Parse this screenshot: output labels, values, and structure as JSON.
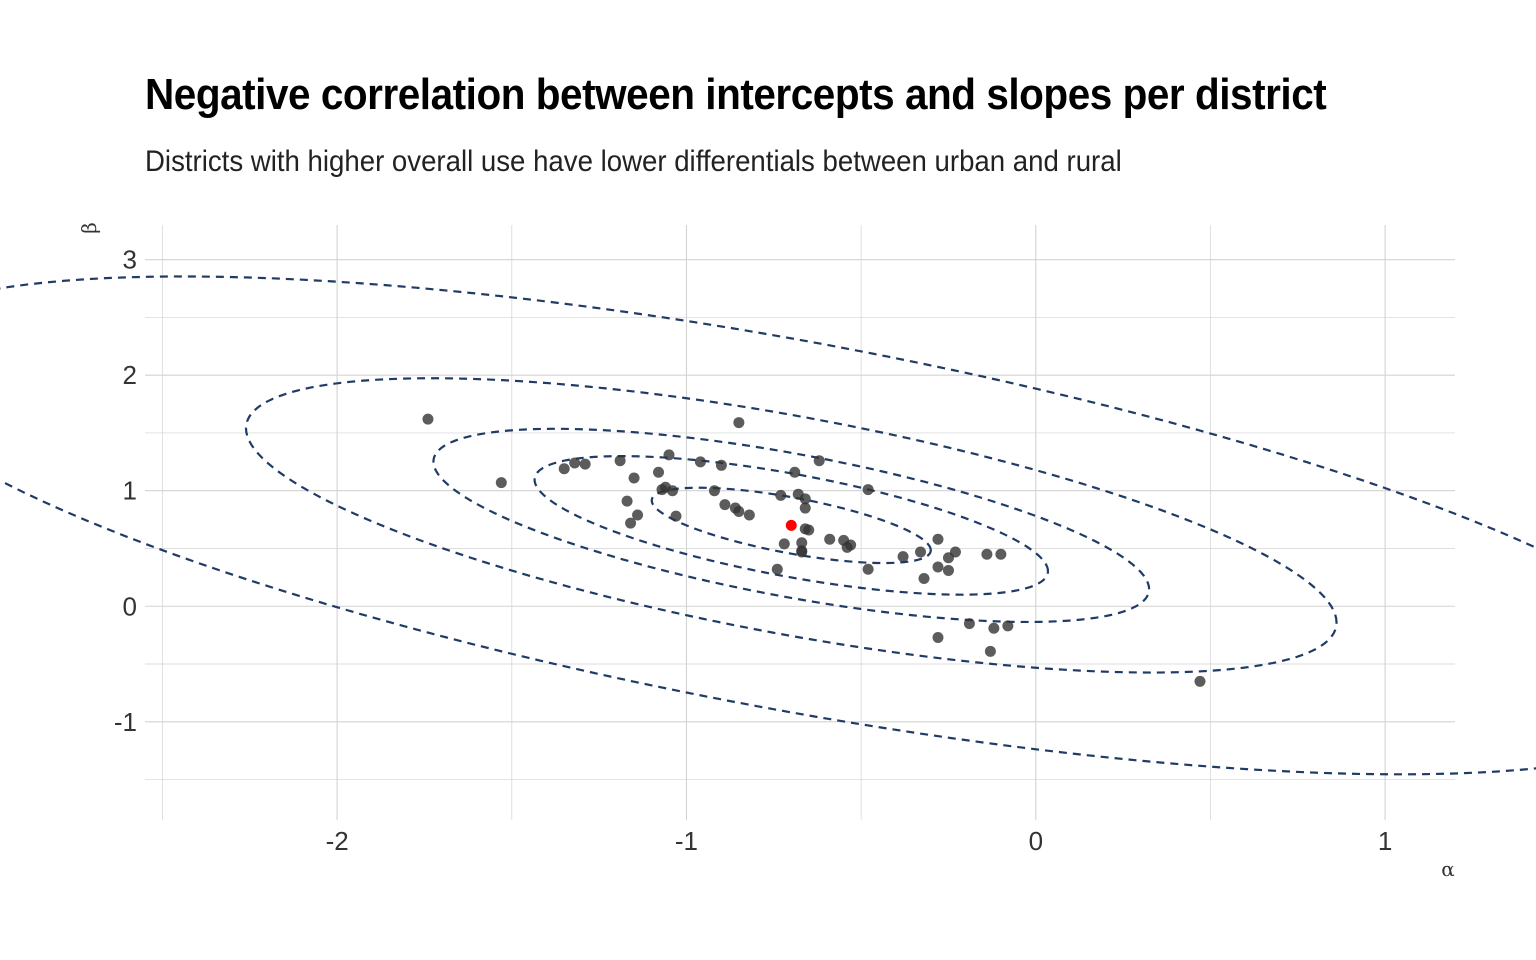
{
  "chart_data": {
    "type": "scatter",
    "title": "Negative correlation between intercepts and slopes per district",
    "subtitle": "Districts with higher overall use have lower differentials between urban and rural",
    "xlabel": "α",
    "ylabel": "β",
    "xlim": [
      -2.55,
      1.2
    ],
    "ylim": [
      -1.85,
      3.3
    ],
    "x_ticks": [
      -2,
      -1,
      0,
      1
    ],
    "y_ticks": [
      -1,
      0,
      1,
      2,
      3
    ],
    "grid": true,
    "colors": {
      "points": "#333333",
      "mean": "#ff0000",
      "ellipse": "#1f3b66",
      "grid": "#d3d3d3"
    },
    "mean_point": {
      "x": -0.7,
      "y": 0.7
    },
    "ellipse_levels": [
      0.1,
      0.3,
      0.5,
      0.8,
      0.99
    ],
    "ellipse_params": {
      "cx": -0.7,
      "cy": 0.7,
      "sd_x": 0.87,
      "sd_y": 0.71,
      "rho": -0.66
    },
    "points": [
      {
        "x": -1.74,
        "y": 1.62
      },
      {
        "x": -1.53,
        "y": 1.07
      },
      {
        "x": -1.35,
        "y": 1.19
      },
      {
        "x": -1.32,
        "y": 1.24
      },
      {
        "x": -1.29,
        "y": 1.23
      },
      {
        "x": -1.19,
        "y": 1.26
      },
      {
        "x": -1.17,
        "y": 0.91
      },
      {
        "x": -1.16,
        "y": 0.72
      },
      {
        "x": -1.15,
        "y": 1.11
      },
      {
        "x": -1.14,
        "y": 0.79
      },
      {
        "x": -1.08,
        "y": 1.16
      },
      {
        "x": -1.07,
        "y": 1.01
      },
      {
        "x": -1.06,
        "y": 1.03
      },
      {
        "x": -1.05,
        "y": 1.31
      },
      {
        "x": -1.04,
        "y": 1.0
      },
      {
        "x": -1.03,
        "y": 0.78
      },
      {
        "x": -0.96,
        "y": 1.25
      },
      {
        "x": -0.92,
        "y": 1.0
      },
      {
        "x": -0.9,
        "y": 1.22
      },
      {
        "x": -0.89,
        "y": 0.88
      },
      {
        "x": -0.86,
        "y": 0.85
      },
      {
        "x": -0.85,
        "y": 0.82
      },
      {
        "x": -0.85,
        "y": 1.59
      },
      {
        "x": -0.82,
        "y": 0.79
      },
      {
        "x": -0.74,
        "y": 0.32
      },
      {
        "x": -0.73,
        "y": 0.96
      },
      {
        "x": -0.72,
        "y": 0.54
      },
      {
        "x": -0.69,
        "y": 1.16
      },
      {
        "x": -0.68,
        "y": 0.97
      },
      {
        "x": -0.67,
        "y": 0.55
      },
      {
        "x": -0.67,
        "y": 0.48
      },
      {
        "x": -0.67,
        "y": 0.47
      },
      {
        "x": -0.66,
        "y": 0.67
      },
      {
        "x": -0.66,
        "y": 0.93
      },
      {
        "x": -0.66,
        "y": 0.85
      },
      {
        "x": -0.65,
        "y": 0.66
      },
      {
        "x": -0.62,
        "y": 1.26
      },
      {
        "x": -0.59,
        "y": 0.58
      },
      {
        "x": -0.55,
        "y": 0.57
      },
      {
        "x": -0.54,
        "y": 0.51
      },
      {
        "x": -0.53,
        "y": 0.53
      },
      {
        "x": -0.48,
        "y": 1.01
      },
      {
        "x": -0.48,
        "y": 0.32
      },
      {
        "x": -0.38,
        "y": 0.43
      },
      {
        "x": -0.33,
        "y": 0.47
      },
      {
        "x": -0.32,
        "y": 0.24
      },
      {
        "x": -0.28,
        "y": 0.34
      },
      {
        "x": -0.28,
        "y": -0.27
      },
      {
        "x": -0.28,
        "y": 0.58
      },
      {
        "x": -0.25,
        "y": 0.42
      },
      {
        "x": -0.25,
        "y": 0.31
      },
      {
        "x": -0.23,
        "y": 0.47
      },
      {
        "x": -0.19,
        "y": -0.15
      },
      {
        "x": -0.14,
        "y": 0.45
      },
      {
        "x": -0.13,
        "y": -0.39
      },
      {
        "x": -0.12,
        "y": -0.19
      },
      {
        "x": -0.1,
        "y": 0.45
      },
      {
        "x": -0.08,
        "y": -0.17
      },
      {
        "x": 0.47,
        "y": -0.65
      }
    ]
  }
}
